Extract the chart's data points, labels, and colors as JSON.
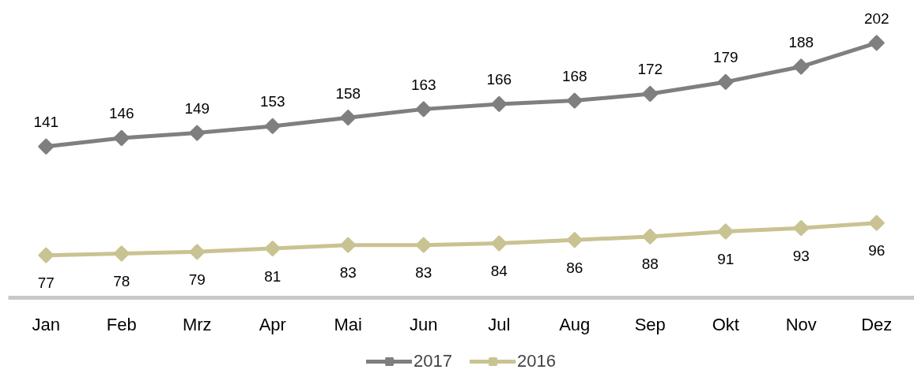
{
  "chart_data": {
    "type": "line",
    "categories": [
      "Jan",
      "Feb",
      "Mrz",
      "Apr",
      "Mai",
      "Jun",
      "Jul",
      "Aug",
      "Sep",
      "Okt",
      "Nov",
      "Dez"
    ],
    "series": [
      {
        "name": "2017",
        "color": "#7f7f7f",
        "values": [
          141,
          146,
          149,
          153,
          158,
          163,
          166,
          168,
          172,
          179,
          188,
          202
        ]
      },
      {
        "name": "2016",
        "color": "#c9c393",
        "values": [
          77,
          78,
          79,
          81,
          83,
          83,
          84,
          86,
          88,
          91,
          93,
          96
        ]
      }
    ],
    "data_labels": true,
    "marker": "diamond",
    "line_style": "solid",
    "grid": false,
    "legend": "bottom",
    "tick_labels": "x"
  }
}
